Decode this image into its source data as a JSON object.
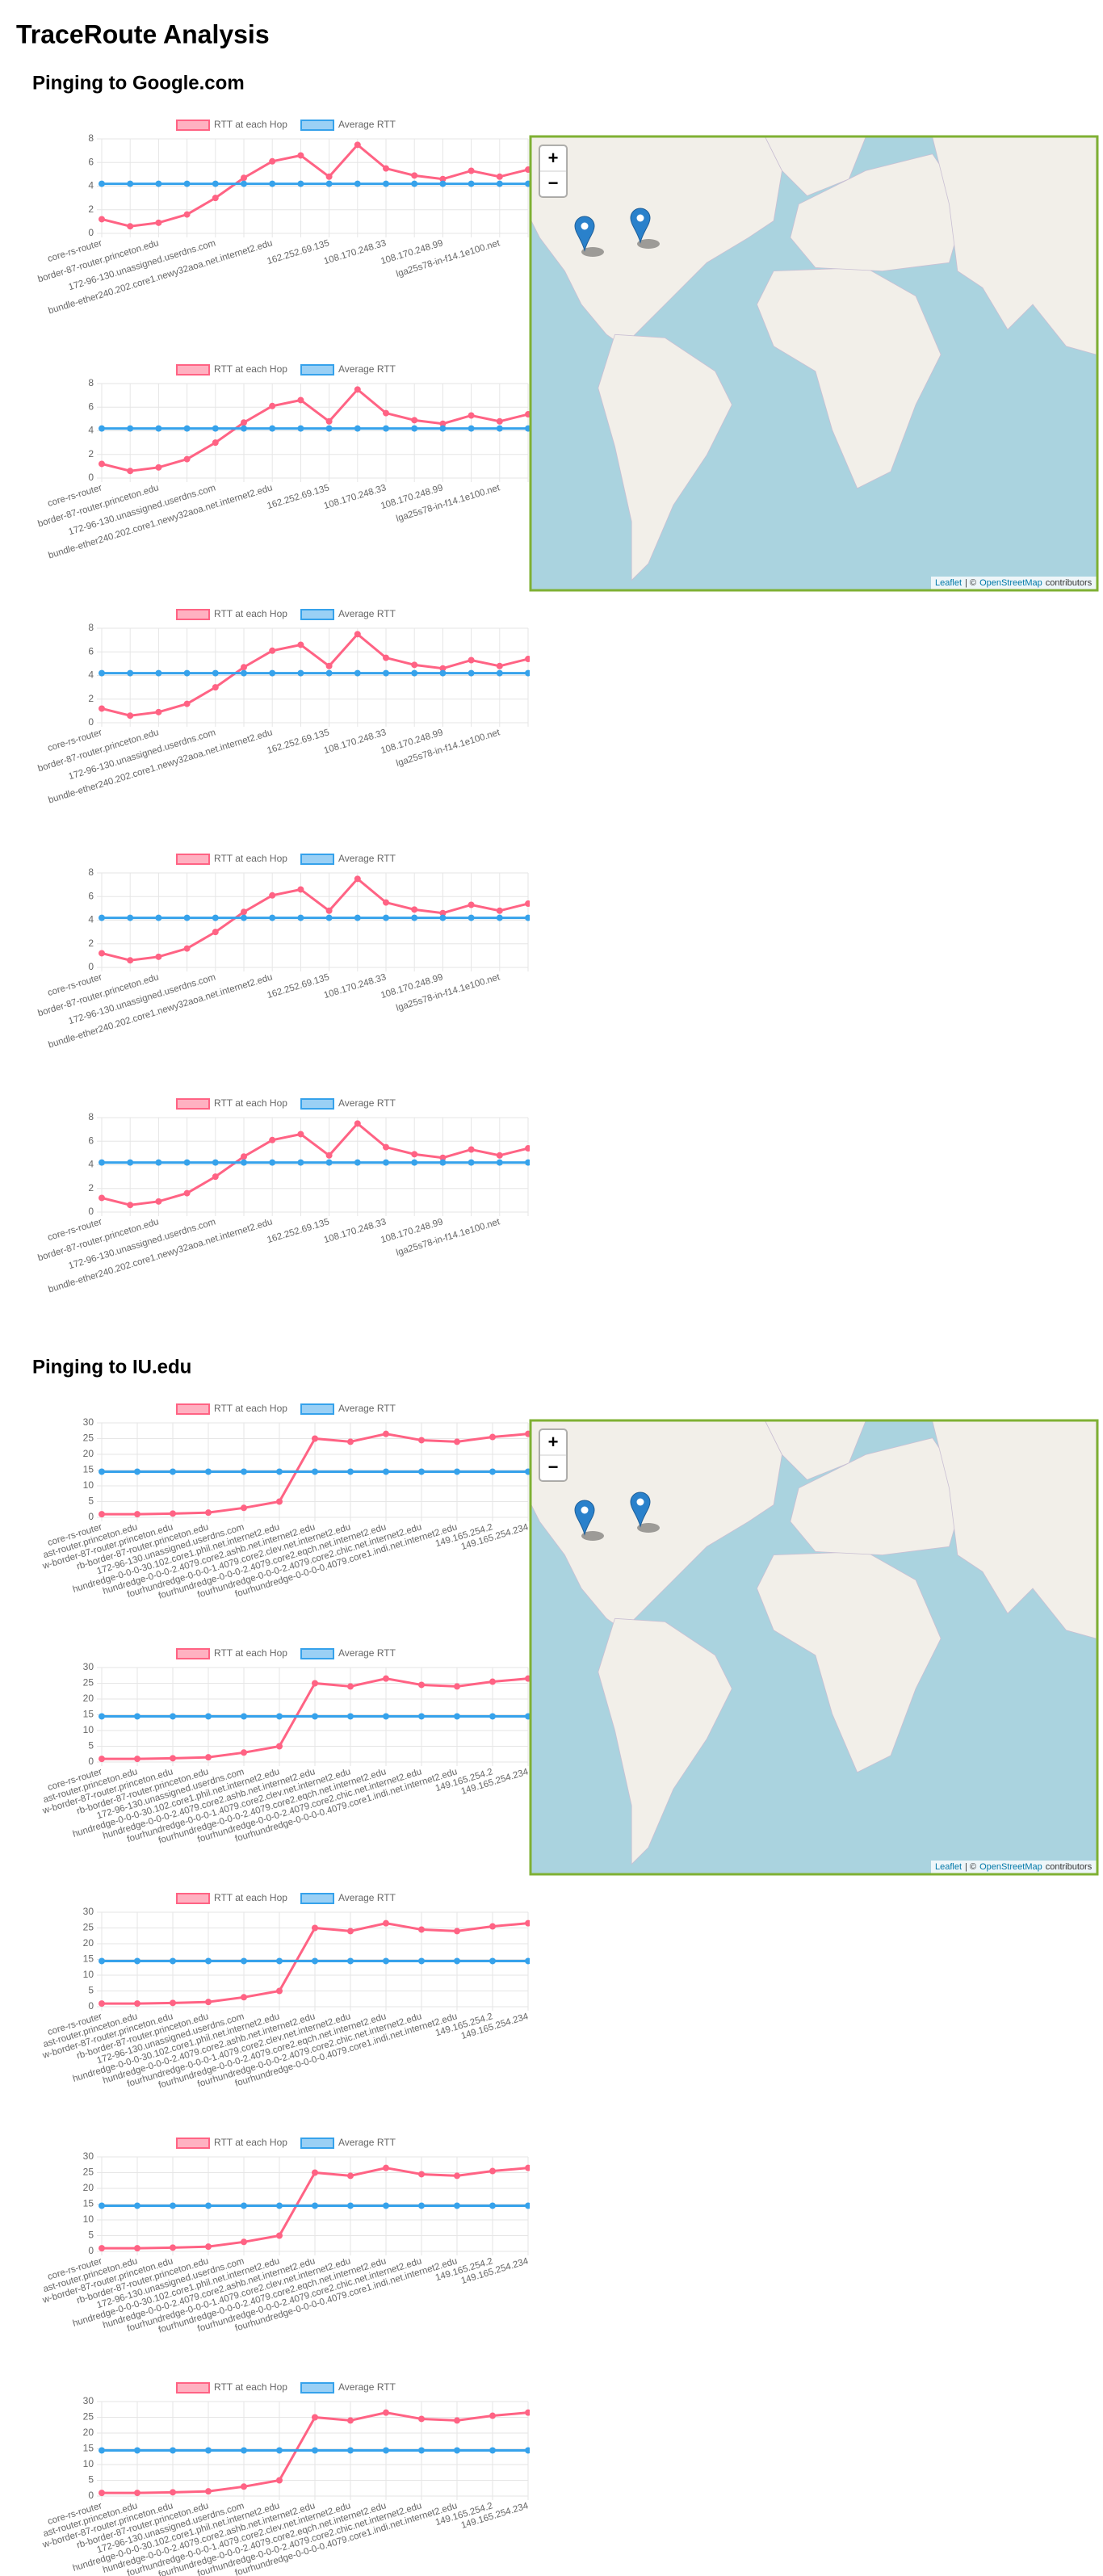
{
  "title": "TraceRoute Analysis",
  "sections": [
    {
      "heading": "Pinging to Google.com",
      "map": {
        "zoom_in": "+",
        "zoom_out": "−",
        "attribution": [
          "Leaflet",
          "| ©",
          "OpenStreetMap",
          "contributors"
        ]
      },
      "chart_data": [
        {
          "type": "line",
          "categories": [
            "core-rs-router",
            null,
            "border-87-router.princeton.edu",
            null,
            "172-96-130.unassigned.userdns.com",
            null,
            "bundle-ether240.202.core1.newy32aoa.net.internet2.edu",
            null,
            "162.252.69.135",
            null,
            "108.170.248.33",
            null,
            "108.170.248.99",
            null,
            "lga25s78-in-f14.1e100.net",
            null
          ],
          "ylim": [
            0,
            8
          ],
          "yticks": [
            0,
            2,
            4,
            6,
            8
          ],
          "grid": true,
          "legend": "top",
          "series": [
            {
              "name": "RTT at each Hop",
              "color": "#ff6384",
              "values": [
                1.2,
                0.6,
                0.9,
                1.6,
                3.0,
                4.7,
                6.1,
                6.6,
                4.8,
                7.5,
                5.5,
                4.9,
                4.6,
                5.3,
                4.8,
                5.4
              ]
            },
            {
              "name": "Average RTT",
              "color": "#36a2eb",
              "values": [
                4.2,
                4.2,
                4.2,
                4.2,
                4.2,
                4.2,
                4.2,
                4.2,
                4.2,
                4.2,
                4.2,
                4.2,
                4.2,
                4.2,
                4.2,
                4.2
              ]
            }
          ]
        },
        {
          "type": "line",
          "categories": [
            "core-rs-router",
            null,
            "border-87-router.princeton.edu",
            null,
            "172-96-130.unassigned.userdns.com",
            null,
            "bundle-ether240.202.core1.newy32aoa.net.internet2.edu",
            null,
            "162.252.69.135",
            null,
            "108.170.248.33",
            null,
            "108.170.248.99",
            null,
            "lga25s78-in-f14.1e100.net",
            null
          ],
          "ylim": [
            0,
            8
          ],
          "yticks": [
            0,
            2,
            4,
            6,
            8
          ],
          "grid": true,
          "legend": "top",
          "series": [
            {
              "name": "RTT at each Hop",
              "color": "#ff6384",
              "values": [
                1.2,
                0.6,
                0.9,
                1.6,
                3.0,
                4.7,
                6.1,
                6.6,
                4.8,
                7.5,
                5.5,
                4.9,
                4.6,
                5.3,
                4.8,
                5.4
              ]
            },
            {
              "name": "Average RTT",
              "color": "#36a2eb",
              "values": [
                4.2,
                4.2,
                4.2,
                4.2,
                4.2,
                4.2,
                4.2,
                4.2,
                4.2,
                4.2,
                4.2,
                4.2,
                4.2,
                4.2,
                4.2,
                4.2
              ]
            }
          ]
        },
        {
          "type": "line",
          "categories": [
            "core-rs-router",
            null,
            "border-87-router.princeton.edu",
            null,
            "172-96-130.unassigned.userdns.com",
            null,
            "bundle-ether240.202.core1.newy32aoa.net.internet2.edu",
            null,
            "162.252.69.135",
            null,
            "108.170.248.33",
            null,
            "108.170.248.99",
            null,
            "lga25s78-in-f14.1e100.net",
            null
          ],
          "ylim": [
            0,
            8
          ],
          "yticks": [
            0,
            2,
            4,
            6,
            8
          ],
          "grid": true,
          "legend": "top",
          "series": [
            {
              "name": "RTT at each Hop",
              "color": "#ff6384",
              "values": [
                1.2,
                0.6,
                0.9,
                1.6,
                3.0,
                4.7,
                6.1,
                6.6,
                4.8,
                7.5,
                5.5,
                4.9,
                4.6,
                5.3,
                4.8,
                5.4
              ]
            },
            {
              "name": "Average RTT",
              "color": "#36a2eb",
              "values": [
                4.2,
                4.2,
                4.2,
                4.2,
                4.2,
                4.2,
                4.2,
                4.2,
                4.2,
                4.2,
                4.2,
                4.2,
                4.2,
                4.2,
                4.2,
                4.2
              ]
            }
          ]
        },
        {
          "type": "line",
          "categories": [
            "core-rs-router",
            null,
            "border-87-router.princeton.edu",
            null,
            "172-96-130.unassigned.userdns.com",
            null,
            "bundle-ether240.202.core1.newy32aoa.net.internet2.edu",
            null,
            "162.252.69.135",
            null,
            "108.170.248.33",
            null,
            "108.170.248.99",
            null,
            "lga25s78-in-f14.1e100.net",
            null
          ],
          "ylim": [
            0,
            8
          ],
          "yticks": [
            0,
            2,
            4,
            6,
            8
          ],
          "grid": true,
          "legend": "top",
          "series": [
            {
              "name": "RTT at each Hop",
              "color": "#ff6384",
              "values": [
                1.2,
                0.6,
                0.9,
                1.6,
                3.0,
                4.7,
                6.1,
                6.6,
                4.8,
                7.5,
                5.5,
                4.9,
                4.6,
                5.3,
                4.8,
                5.4
              ]
            },
            {
              "name": "Average RTT",
              "color": "#36a2eb",
              "values": [
                4.2,
                4.2,
                4.2,
                4.2,
                4.2,
                4.2,
                4.2,
                4.2,
                4.2,
                4.2,
                4.2,
                4.2,
                4.2,
                4.2,
                4.2,
                4.2
              ]
            }
          ]
        },
        {
          "type": "line",
          "categories": [
            "core-rs-router",
            null,
            "border-87-router.princeton.edu",
            null,
            "172-96-130.unassigned.userdns.com",
            null,
            "bundle-ether240.202.core1.newy32aoa.net.internet2.edu",
            null,
            "162.252.69.135",
            null,
            "108.170.248.33",
            null,
            "108.170.248.99",
            null,
            "lga25s78-in-f14.1e100.net",
            null
          ],
          "ylim": [
            0,
            8
          ],
          "yticks": [
            0,
            2,
            4,
            6,
            8
          ],
          "grid": true,
          "legend": "top",
          "series": [
            {
              "name": "RTT at each Hop",
              "color": "#ff6384",
              "values": [
                1.2,
                0.6,
                0.9,
                1.6,
                3.0,
                4.7,
                6.1,
                6.6,
                4.8,
                7.5,
                5.5,
                4.9,
                4.6,
                5.3,
                4.8,
                5.4
              ]
            },
            {
              "name": "Average RTT",
              "color": "#36a2eb",
              "values": [
                4.2,
                4.2,
                4.2,
                4.2,
                4.2,
                4.2,
                4.2,
                4.2,
                4.2,
                4.2,
                4.2,
                4.2,
                4.2,
                4.2,
                4.2,
                4.2
              ]
            }
          ]
        }
      ]
    },
    {
      "heading": "Pinging to IU.edu",
      "map": {
        "zoom_in": "+",
        "zoom_out": "−",
        "attribution": [
          "Leaflet",
          "| ©",
          "OpenStreetMap",
          "contributors"
        ]
      },
      "chart_data": [
        {
          "type": "line",
          "categories": [
            "core-rs-router",
            "ast-router.princeton.edu",
            "w-border-87-router.princeton.edu",
            "rb-border-87-router.princeton.edu",
            "172-96-130.unassigned.userdns.com",
            "hundredge-0-0-0-30.102.core1.phil.net.internet2.edu",
            "hundredge-0-0-0-2.4079.core2.ashb.net.internet2.edu",
            "fourhundredge-0-0-0-1.4079.core2.clev.net.internet2.edu",
            "fourhundredge-0-0-0-2.4079.core2.eqch.net.internet2.edu",
            "fourhundredge-0-0-0-2.4079.core2.chic.net.internet2.edu",
            "fourhundredge-0-0-0-0.4079.core1.indi.net.internet2.edu",
            "149.165.254.2",
            "149.165.254.234"
          ],
          "ylim": [
            0,
            30
          ],
          "yticks": [
            0,
            5,
            10,
            15,
            20,
            25,
            30
          ],
          "grid": true,
          "legend": "top",
          "series": [
            {
              "name": "RTT at each Hop",
              "color": "#ff6384",
              "values": [
                1.0,
                1.0,
                1.2,
                1.5,
                3.0,
                5.0,
                25.0,
                24.0,
                26.5,
                24.5,
                24.0,
                25.5,
                26.5
              ]
            },
            {
              "name": "Average RTT",
              "color": "#36a2eb",
              "values": [
                14.5,
                14.5,
                14.5,
                14.5,
                14.5,
                14.5,
                14.5,
                14.5,
                14.5,
                14.5,
                14.5,
                14.5,
                14.5
              ]
            }
          ]
        },
        {
          "type": "line",
          "categories": [
            "core-rs-router",
            "ast-router.princeton.edu",
            "w-border-87-router.princeton.edu",
            "rb-border-87-router.princeton.edu",
            "172-96-130.unassigned.userdns.com",
            "hundredge-0-0-0-30.102.core1.phil.net.internet2.edu",
            "hundredge-0-0-0-2.4079.core2.ashb.net.internet2.edu",
            "fourhundredge-0-0-0-1.4079.core2.clev.net.internet2.edu",
            "fourhundredge-0-0-0-2.4079.core2.eqch.net.internet2.edu",
            "fourhundredge-0-0-0-2.4079.core2.chic.net.internet2.edu",
            "fourhundredge-0-0-0-0.4079.core1.indi.net.internet2.edu",
            "149.165.254.2",
            "149.165.254.234"
          ],
          "ylim": [
            0,
            30
          ],
          "yticks": [
            0,
            5,
            10,
            15,
            20,
            25,
            30
          ],
          "grid": true,
          "legend": "top",
          "series": [
            {
              "name": "RTT at each Hop",
              "color": "#ff6384",
              "values": [
                1.0,
                1.0,
                1.2,
                1.5,
                3.0,
                5.0,
                25.0,
                24.0,
                26.5,
                24.5,
                24.0,
                25.5,
                26.5
              ]
            },
            {
              "name": "Average RTT",
              "color": "#36a2eb",
              "values": [
                14.5,
                14.5,
                14.5,
                14.5,
                14.5,
                14.5,
                14.5,
                14.5,
                14.5,
                14.5,
                14.5,
                14.5,
                14.5
              ]
            }
          ]
        },
        {
          "type": "line",
          "categories": [
            "core-rs-router",
            "ast-router.princeton.edu",
            "w-border-87-router.princeton.edu",
            "rb-border-87-router.princeton.edu",
            "172-96-130.unassigned.userdns.com",
            "hundredge-0-0-0-30.102.core1.phil.net.internet2.edu",
            "hundredge-0-0-0-2.4079.core2.ashb.net.internet2.edu",
            "fourhundredge-0-0-0-1.4079.core2.clev.net.internet2.edu",
            "fourhundredge-0-0-0-2.4079.core2.eqch.net.internet2.edu",
            "fourhundredge-0-0-0-2.4079.core2.chic.net.internet2.edu",
            "fourhundredge-0-0-0-0.4079.core1.indi.net.internet2.edu",
            "149.165.254.2",
            "149.165.254.234"
          ],
          "ylim": [
            0,
            30
          ],
          "yticks": [
            0,
            5,
            10,
            15,
            20,
            25,
            30
          ],
          "grid": true,
          "legend": "top",
          "series": [
            {
              "name": "RTT at each Hop",
              "color": "#ff6384",
              "values": [
                1.0,
                1.0,
                1.2,
                1.5,
                3.0,
                5.0,
                25.0,
                24.0,
                26.5,
                24.5,
                24.0,
                25.5,
                26.5
              ]
            },
            {
              "name": "Average RTT",
              "color": "#36a2eb",
              "values": [
                14.5,
                14.5,
                14.5,
                14.5,
                14.5,
                14.5,
                14.5,
                14.5,
                14.5,
                14.5,
                14.5,
                14.5,
                14.5
              ]
            }
          ]
        },
        {
          "type": "line",
          "categories": [
            "core-rs-router",
            "ast-router.princeton.edu",
            "w-border-87-router.princeton.edu",
            "rb-border-87-router.princeton.edu",
            "172-96-130.unassigned.userdns.com",
            "hundredge-0-0-0-30.102.core1.phil.net.internet2.edu",
            "hundredge-0-0-0-2.4079.core2.ashb.net.internet2.edu",
            "fourhundredge-0-0-0-1.4079.core2.clev.net.internet2.edu",
            "fourhundredge-0-0-0-2.4079.core2.eqch.net.internet2.edu",
            "fourhundredge-0-0-0-2.4079.core2.chic.net.internet2.edu",
            "fourhundredge-0-0-0-0.4079.core1.indi.net.internet2.edu",
            "149.165.254.2",
            "149.165.254.234"
          ],
          "ylim": [
            0,
            30
          ],
          "yticks": [
            0,
            5,
            10,
            15,
            20,
            25,
            30
          ],
          "grid": true,
          "legend": "top",
          "series": [
            {
              "name": "RTT at each Hop",
              "color": "#ff6384",
              "values": [
                1.0,
                1.0,
                1.2,
                1.5,
                3.0,
                5.0,
                25.0,
                24.0,
                26.5,
                24.5,
                24.0,
                25.5,
                26.5
              ]
            },
            {
              "name": "Average RTT",
              "color": "#36a2eb",
              "values": [
                14.5,
                14.5,
                14.5,
                14.5,
                14.5,
                14.5,
                14.5,
                14.5,
                14.5,
                14.5,
                14.5,
                14.5,
                14.5
              ]
            }
          ]
        },
        {
          "type": "line",
          "categories": [
            "core-rs-router",
            "ast-router.princeton.edu",
            "w-border-87-router.princeton.edu",
            "rb-border-87-router.princeton.edu",
            "172-96-130.unassigned.userdns.com",
            "hundredge-0-0-0-30.102.core1.phil.net.internet2.edu",
            "hundredge-0-0-0-2.4079.core2.ashb.net.internet2.edu",
            "fourhundredge-0-0-0-1.4079.core2.clev.net.internet2.edu",
            "fourhundredge-0-0-0-2.4079.core2.eqch.net.internet2.edu",
            "fourhundredge-0-0-0-2.4079.core2.chic.net.internet2.edu",
            "fourhundredge-0-0-0-0.4079.core1.indi.net.internet2.edu",
            "149.165.254.2",
            "149.165.254.234"
          ],
          "ylim": [
            0,
            30
          ],
          "yticks": [
            0,
            5,
            10,
            15,
            20,
            25,
            30
          ],
          "grid": true,
          "legend": "top",
          "series": [
            {
              "name": "RTT at each Hop",
              "color": "#ff6384",
              "values": [
                1.0,
                1.0,
                1.2,
                1.5,
                3.0,
                5.0,
                25.0,
                24.0,
                26.5,
                24.5,
                24.0,
                25.5,
                26.5
              ]
            },
            {
              "name": "Average RTT",
              "color": "#36a2eb",
              "values": [
                14.5,
                14.5,
                14.5,
                14.5,
                14.5,
                14.5,
                14.5,
                14.5,
                14.5,
                14.5,
                14.5,
                14.5,
                14.5
              ]
            }
          ]
        }
      ]
    }
  ]
}
